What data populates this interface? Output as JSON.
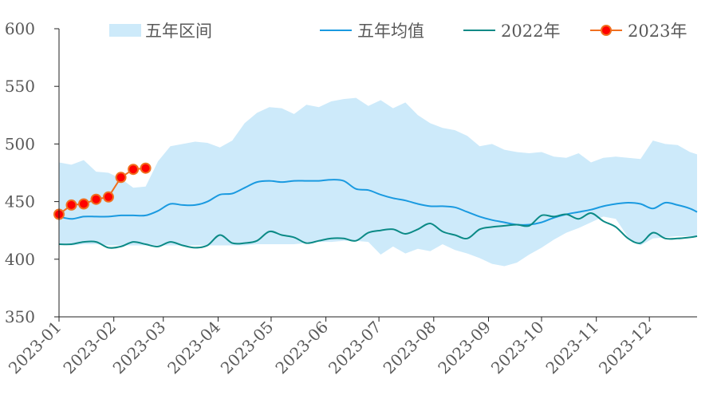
{
  "chart_data": {
    "type": "line",
    "title": "",
    "xlabel": "",
    "ylabel": "",
    "ylim": [
      350,
      600
    ],
    "yticks": [
      350,
      400,
      450,
      500,
      550,
      600
    ],
    "xlim": [
      "2023-01",
      "2023-12-28"
    ],
    "xtick_labels": [
      "2023-01",
      "2023-02",
      "2023-03",
      "2023-04",
      "2023-05",
      "2023-06",
      "2023-07",
      "2023-08",
      "2023-09",
      "2023-10",
      "2023-11",
      "2023-12"
    ],
    "grid": false,
    "legend_position": "top",
    "legend": [
      "五年区间",
      "五年均值",
      "2022年",
      "2023年"
    ],
    "colors": {
      "range_fill": "#cdeafa",
      "avg": "#1a9ae0",
      "y2022": "#0b8a86",
      "y2023_line": "#f07020",
      "y2023_marker": "#ff0000",
      "axis": "#222222",
      "text": "#595959"
    },
    "series": [
      {
        "name": "五年区间",
        "kind": "band",
        "x": [
          "2023-01-01",
          "2023-01-08",
          "2023-01-15",
          "2023-01-22",
          "2023-01-29",
          "2023-02-05",
          "2023-02-12",
          "2023-02-19",
          "2023-02-26",
          "2023-03-05",
          "2023-03-12",
          "2023-03-19",
          "2023-03-26",
          "2023-04-02",
          "2023-04-09",
          "2023-04-16",
          "2023-04-23",
          "2023-04-30",
          "2023-05-07",
          "2023-05-14",
          "2023-05-21",
          "2023-05-28",
          "2023-06-04",
          "2023-06-11",
          "2023-06-18",
          "2023-06-25",
          "2023-07-02",
          "2023-07-09",
          "2023-07-16",
          "2023-07-23",
          "2023-07-30",
          "2023-08-06",
          "2023-08-13",
          "2023-08-20",
          "2023-08-27",
          "2023-09-03",
          "2023-09-10",
          "2023-09-17",
          "2023-09-24",
          "2023-10-01",
          "2023-10-08",
          "2023-10-15",
          "2023-10-22",
          "2023-10-29",
          "2023-11-05",
          "2023-11-12",
          "2023-11-19",
          "2023-11-26",
          "2023-12-03",
          "2023-12-10",
          "2023-12-17",
          "2023-12-24",
          "2023-12-28"
        ],
        "upper": [
          484,
          482,
          486,
          476,
          475,
          470,
          462,
          463,
          485,
          498,
          500,
          502,
          501,
          497,
          503,
          518,
          527,
          532,
          531,
          526,
          534,
          532,
          537,
          539,
          540,
          533,
          538,
          531,
          536,
          525,
          518,
          514,
          512,
          507,
          498,
          500,
          495,
          493,
          492,
          493,
          489,
          488,
          492,
          484,
          488,
          489,
          488,
          487,
          503,
          500,
          499,
          493,
          491
        ],
        "lower": [
          413,
          412,
          413,
          413,
          412,
          412,
          412,
          412,
          412,
          412,
          412,
          412,
          412,
          412,
          412,
          412,
          413,
          413,
          413,
          413,
          414,
          415,
          415,
          416,
          416,
          415,
          404,
          411,
          405,
          409,
          407,
          413,
          408,
          405,
          401,
          396,
          394,
          397,
          404,
          410,
          417,
          423,
          427,
          432,
          437,
          435,
          419,
          412,
          418,
          419,
          420,
          420,
          420
        ]
      },
      {
        "name": "五年均值",
        "kind": "line",
        "x": [
          "2023-01-01",
          "2023-01-08",
          "2023-01-15",
          "2023-01-22",
          "2023-01-29",
          "2023-02-05",
          "2023-02-12",
          "2023-02-19",
          "2023-02-26",
          "2023-03-05",
          "2023-03-12",
          "2023-03-19",
          "2023-03-26",
          "2023-04-02",
          "2023-04-09",
          "2023-04-16",
          "2023-04-23",
          "2023-04-30",
          "2023-05-07",
          "2023-05-14",
          "2023-05-21",
          "2023-05-28",
          "2023-06-04",
          "2023-06-11",
          "2023-06-18",
          "2023-06-25",
          "2023-07-02",
          "2023-07-09",
          "2023-07-16",
          "2023-07-23",
          "2023-07-30",
          "2023-08-06",
          "2023-08-13",
          "2023-08-20",
          "2023-08-27",
          "2023-09-03",
          "2023-09-10",
          "2023-09-17",
          "2023-09-24",
          "2023-10-01",
          "2023-10-08",
          "2023-10-15",
          "2023-10-22",
          "2023-10-29",
          "2023-11-05",
          "2023-11-12",
          "2023-11-19",
          "2023-11-26",
          "2023-12-03",
          "2023-12-10",
          "2023-12-17",
          "2023-12-24",
          "2023-12-28"
        ],
        "values": [
          437,
          435,
          437,
          437,
          437,
          438,
          438,
          438,
          442,
          448,
          447,
          447,
          450,
          456,
          457,
          462,
          467,
          468,
          467,
          468,
          468,
          468,
          469,
          468,
          461,
          460,
          456,
          453,
          451,
          448,
          446,
          446,
          445,
          441,
          437,
          434,
          432,
          430,
          430,
          432,
          436,
          439,
          441,
          443,
          446,
          448,
          449,
          448,
          444,
          449,
          447,
          444,
          441
        ]
      },
      {
        "name": "2022年",
        "kind": "line",
        "x": [
          "2023-01-01",
          "2023-01-08",
          "2023-01-15",
          "2023-01-22",
          "2023-01-29",
          "2023-02-05",
          "2023-02-12",
          "2023-02-19",
          "2023-02-26",
          "2023-03-05",
          "2023-03-12",
          "2023-03-19",
          "2023-03-26",
          "2023-04-02",
          "2023-04-09",
          "2023-04-16",
          "2023-04-23",
          "2023-04-30",
          "2023-05-07",
          "2023-05-14",
          "2023-05-21",
          "2023-05-28",
          "2023-06-04",
          "2023-06-11",
          "2023-06-18",
          "2023-06-25",
          "2023-07-02",
          "2023-07-09",
          "2023-07-16",
          "2023-07-23",
          "2023-07-30",
          "2023-08-06",
          "2023-08-13",
          "2023-08-20",
          "2023-08-27",
          "2023-09-03",
          "2023-09-10",
          "2023-09-17",
          "2023-09-24",
          "2023-10-01",
          "2023-10-08",
          "2023-10-15",
          "2023-10-22",
          "2023-10-29",
          "2023-11-05",
          "2023-11-12",
          "2023-11-19",
          "2023-11-26",
          "2023-12-03",
          "2023-12-10",
          "2023-12-17",
          "2023-12-24",
          "2023-12-28"
        ],
        "values": [
          413,
          413,
          415,
          415,
          410,
          411,
          415,
          413,
          411,
          415,
          412,
          410,
          412,
          421,
          414,
          414,
          416,
          424,
          421,
          419,
          414,
          416,
          418,
          418,
          416,
          423,
          425,
          426,
          422,
          426,
          431,
          424,
          421,
          418,
          426,
          428,
          429,
          430,
          429,
          438,
          437,
          439,
          435,
          440,
          433,
          428,
          418,
          414,
          423,
          418,
          418,
          419,
          420
        ]
      },
      {
        "name": "2023年",
        "kind": "line-marker",
        "x": [
          "2023-01-01",
          "2023-01-08",
          "2023-01-15",
          "2023-01-22",
          "2023-01-29",
          "2023-02-05",
          "2023-02-12",
          "2023-02-19"
        ],
        "values": [
          439,
          447,
          448,
          452,
          454,
          471,
          478,
          479
        ]
      }
    ]
  }
}
